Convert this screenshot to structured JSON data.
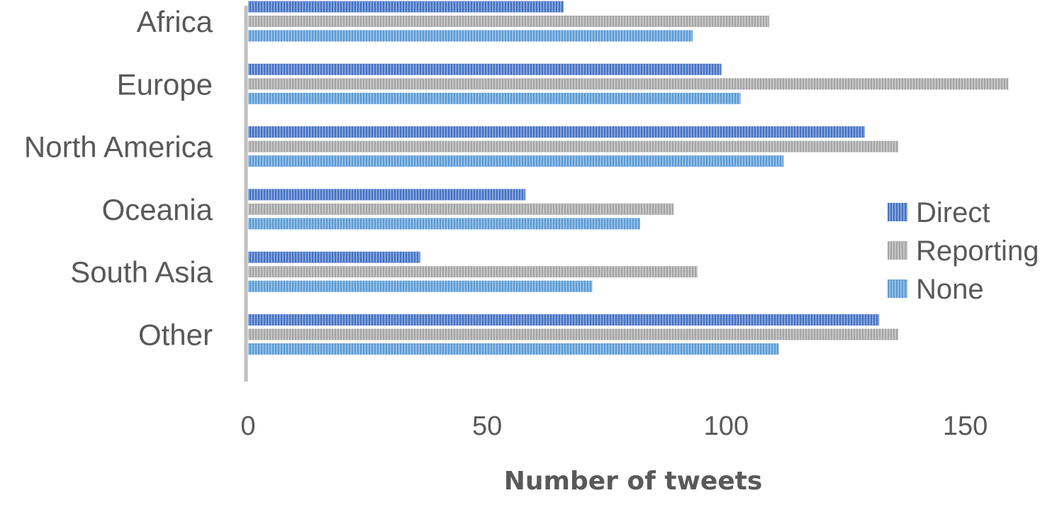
{
  "chart_data": {
    "type": "bar",
    "orientation": "horizontal",
    "categories": [
      "Africa",
      "Europe",
      "North America",
      "Oceania",
      "South Asia",
      "Other"
    ],
    "series": [
      {
        "name": "Direct",
        "color": "#4472C4",
        "values": [
          66,
          99,
          129,
          58,
          36,
          132
        ]
      },
      {
        "name": "Reporting",
        "color": "#A5A5A5",
        "values": [
          109,
          159,
          136,
          89,
          94,
          136
        ]
      },
      {
        "name": "None",
        "color": "#5B9BD5",
        "values": [
          93,
          103,
          112,
          82,
          72,
          111
        ]
      }
    ],
    "xlabel": "Number of tweets",
    "ylabel": "",
    "xlim": [
      0,
      160
    ],
    "xticks": [
      "0",
      "50",
      "100",
      "150"
    ],
    "xtick_values": [
      0,
      50,
      100,
      150
    ],
    "grid": false,
    "legend_position": "right",
    "pattern": "vertical-stripes"
  }
}
